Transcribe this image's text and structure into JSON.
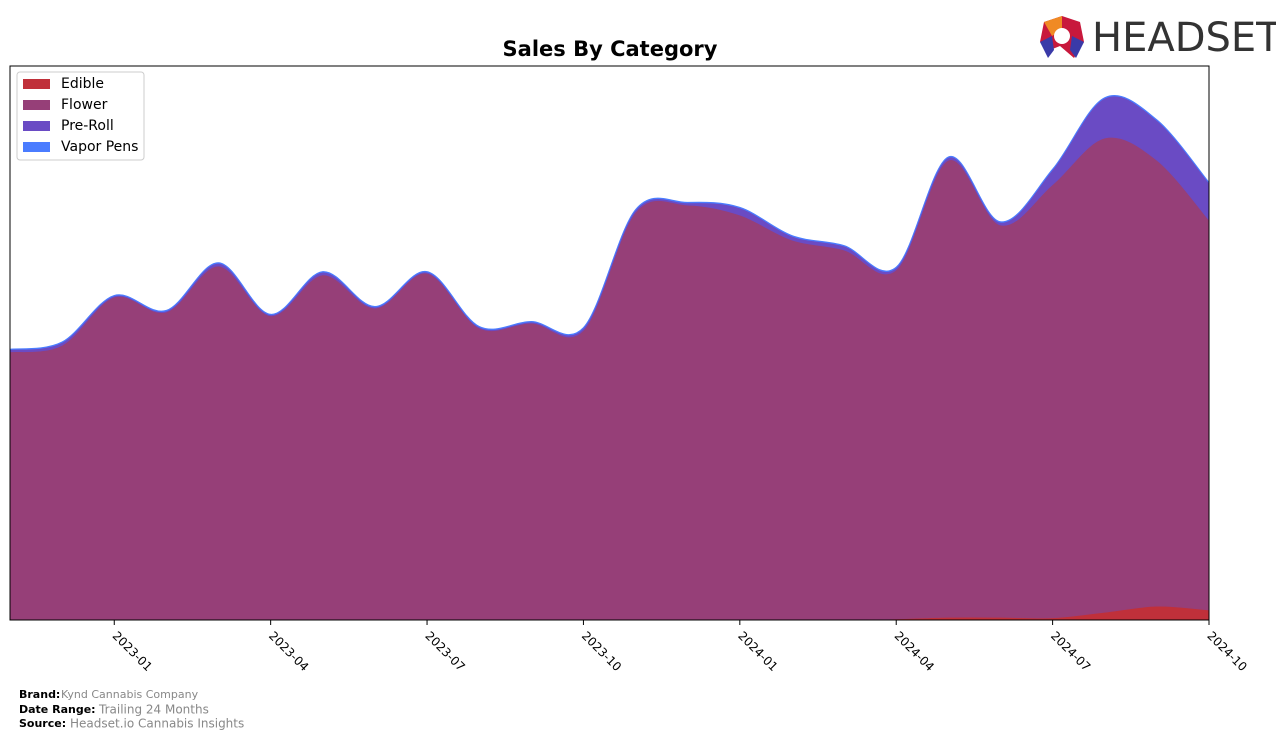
{
  "chart_data": {
    "type": "stacked-area",
    "title": "Sales By Category",
    "x": [
      "2022-11",
      "2022-12",
      "2023-01",
      "2023-02",
      "2023-03",
      "2023-04",
      "2023-05",
      "2023-06",
      "2023-07",
      "2023-08",
      "2023-09",
      "2023-10",
      "2023-11",
      "2023-12",
      "2024-01",
      "2024-02",
      "2024-03",
      "2024-04",
      "2024-05",
      "2024-06",
      "2024-07",
      "2024-08",
      "2024-09",
      "2024-10"
    ],
    "xlim": [
      "2022-11",
      "2024-10"
    ],
    "xticks": [
      "2023-01",
      "2023-04",
      "2023-07",
      "2023-10",
      "2024-01",
      "2024-04",
      "2024-07",
      "2024-10"
    ],
    "ylim": [
      0,
      100
    ],
    "legend": "upper left",
    "series": [
      {
        "name": "Edible",
        "color": "#c0303a",
        "values": [
          0,
          0,
          0,
          0,
          0,
          0,
          0,
          0,
          0,
          0,
          0,
          0,
          0,
          0,
          0,
          0,
          0,
          0.2,
          0.5,
          0.5,
          0.4,
          1.4,
          2.5,
          1.8
        ]
      },
      {
        "name": "Flower",
        "color": "#963f78",
        "values": [
          48.4,
          49.6,
          58.3,
          55.6,
          63.9,
          54.9,
          62.3,
          56.3,
          62.6,
          52.7,
          53.6,
          52.3,
          73.6,
          74.9,
          73.1,
          68.6,
          66.8,
          63.0,
          82.5,
          70.8,
          78.2,
          85.6,
          80.5,
          70.4
        ]
      },
      {
        "name": "Pre-Roll",
        "color": "#6a4bc4",
        "values": [
          0.4,
          0.5,
          0.2,
          0.2,
          0.5,
          0.2,
          0.5,
          0.2,
          0.2,
          0.2,
          0.2,
          0.4,
          0.4,
          0.4,
          1.3,
          0.7,
          0.7,
          0.4,
          0.5,
          0.5,
          2.7,
          7.2,
          7.2,
          6.7
        ]
      },
      {
        "name": "Vapor Pens",
        "color": "#4a7cff",
        "values": [
          0.1,
          0.1,
          0.1,
          0.1,
          0.1,
          0.1,
          0.1,
          0.1,
          0.1,
          0.1,
          0.1,
          0.1,
          0.1,
          0.1,
          0.1,
          0.1,
          0.1,
          0.1,
          0.1,
          0.1,
          0.1,
          0.1,
          0.1,
          0.1
        ]
      }
    ]
  },
  "logo": "HEADSET",
  "footer": {
    "brand_label": "Brand:",
    "brand": "Kynd Cannabis Company",
    "range_label": "Date Range:",
    "range": "Trailing 24 Months",
    "source_label": "Source:",
    "source": "Headset.io Cannabis Insights"
  }
}
